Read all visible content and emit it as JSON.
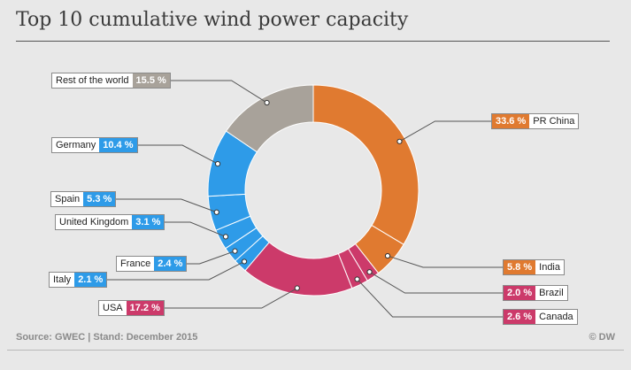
{
  "title": "Top 10 cumulative wind power capacity",
  "source": "Source: GWEC | Stand: December 2015",
  "credit": "© DW",
  "chart_data": {
    "type": "pie",
    "style": "donut",
    "title": "Top 10 cumulative wind power capacity",
    "unit": "%",
    "slices": [
      {
        "name": "PR China",
        "value": 33.6,
        "label": "33.6 %",
        "color": "#e07a30"
      },
      {
        "name": "India",
        "value": 5.8,
        "label": "5.8 %",
        "color": "#e07a30"
      },
      {
        "name": "Brazil",
        "value": 2.0,
        "label": "2.0 %",
        "color": "#cc3a6a"
      },
      {
        "name": "Canada",
        "value": 2.6,
        "label": "2.6 %",
        "color": "#cc3a6a"
      },
      {
        "name": "USA",
        "value": 17.2,
        "label": "17.2 %",
        "color": "#cc3a6a"
      },
      {
        "name": "Italy",
        "value": 2.1,
        "label": "2.1 %",
        "color": "#2e9be8"
      },
      {
        "name": "France",
        "value": 2.4,
        "label": "2.4 %",
        "color": "#2e9be8"
      },
      {
        "name": "United Kingdom",
        "value": 3.1,
        "label": "3.1 %",
        "color": "#2e9be8"
      },
      {
        "name": "Spain",
        "value": 5.3,
        "label": "5.3 %",
        "color": "#2e9be8"
      },
      {
        "name": "Germany",
        "value": 10.4,
        "label": "10.4 %",
        "color": "#2e9be8"
      },
      {
        "name": "Rest of the world",
        "value": 15.5,
        "label": "15.5 %",
        "color": "#a8a29a"
      }
    ]
  }
}
